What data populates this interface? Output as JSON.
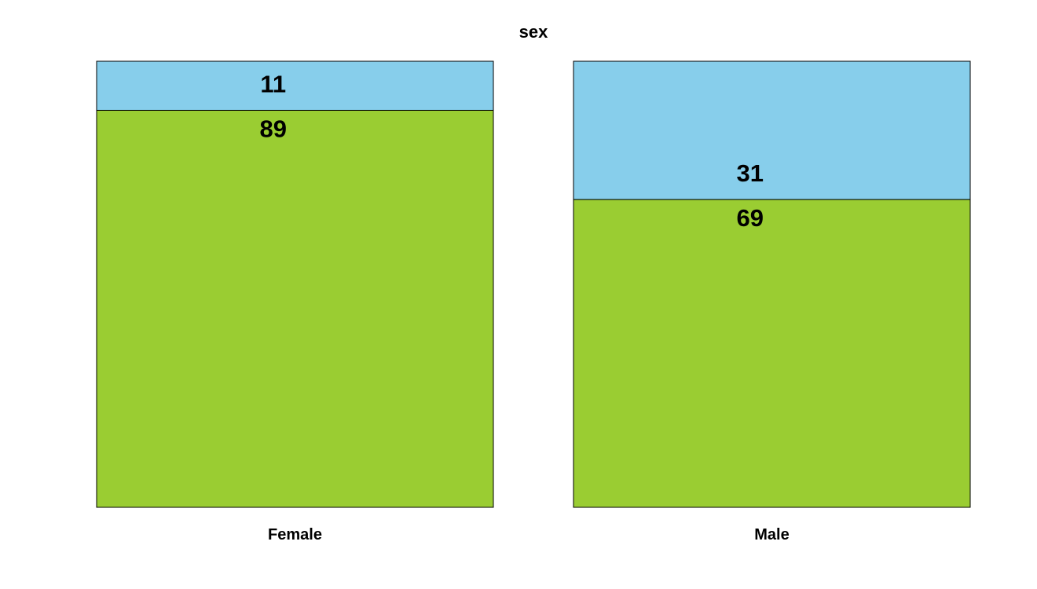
{
  "chart_data": {
    "type": "bar",
    "stacked": true,
    "percent": true,
    "title": "sex",
    "xlabel": "",
    "ylabel": "",
    "ylim": [
      0,
      100
    ],
    "grid": false,
    "categories": [
      "Female",
      "Male"
    ],
    "series": [
      {
        "values": [
          11,
          31
        ],
        "color": "#87ceeb"
      },
      {
        "values": [
          89,
          69
        ],
        "color": "#9acd32"
      }
    ]
  }
}
